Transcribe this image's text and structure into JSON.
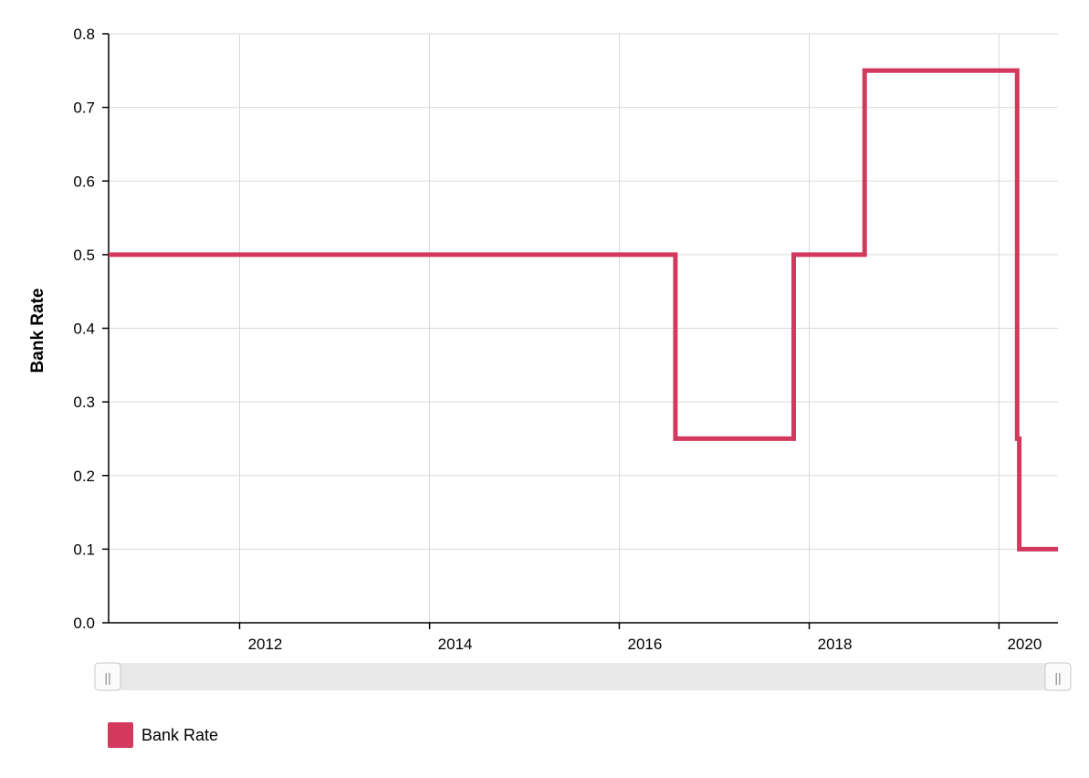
{
  "chart_data": {
    "type": "line",
    "step": true,
    "title": "",
    "xlabel": "",
    "ylabel": "Bank Rate",
    "xlim": [
      "2010-08-15",
      "2020-08-15"
    ],
    "ylim": [
      0,
      0.8
    ],
    "x_ticks": [
      2012,
      2014,
      2016,
      2018,
      2020
    ],
    "y_ticks": [
      "0.0",
      "0.1",
      "0.2",
      "0.3",
      "0.4",
      "0.5",
      "0.6",
      "0.7",
      "0.8"
    ],
    "grid": true,
    "legend_position": "bottom-left",
    "series": [
      {
        "name": "Bank Rate",
        "color": "#d2395d",
        "points": [
          {
            "x": "2010-08-15",
            "y": 0.5
          },
          {
            "x": "2016-08-04",
            "y": 0.25
          },
          {
            "x": "2017-11-02",
            "y": 0.5
          },
          {
            "x": "2018-08-02",
            "y": 0.75
          },
          {
            "x": "2020-03-11",
            "y": 0.25
          },
          {
            "x": "2020-03-19",
            "y": 0.1
          },
          {
            "x": "2020-08-15",
            "y": 0.1
          }
        ]
      }
    ]
  },
  "legend": {
    "label": "Bank Rate",
    "color": "#d2395d"
  },
  "scrollbar": {
    "left_grip": "||",
    "right_grip": "||"
  }
}
